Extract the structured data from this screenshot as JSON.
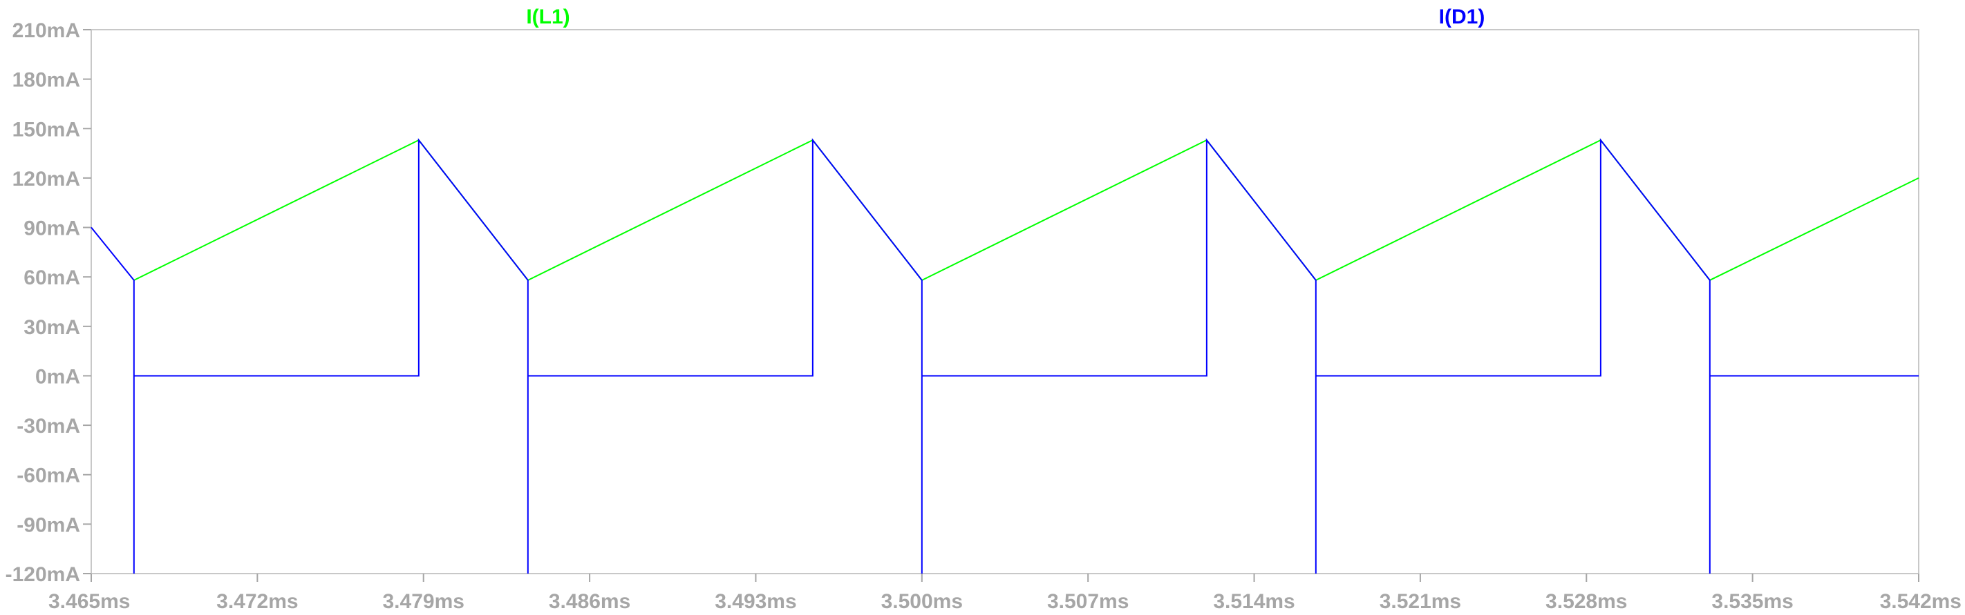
{
  "chart_data": {
    "type": "line",
    "title": "",
    "xlabel": "",
    "ylabel": "",
    "xlim": [
      3.465,
      3.542
    ],
    "ylim": [
      -120,
      210
    ],
    "x_unit": "ms",
    "y_unit": "mA",
    "grid": false,
    "legend": "top",
    "x_ticks": [
      "3.465ms",
      "3.472ms",
      "3.479ms",
      "3.486ms",
      "3.493ms",
      "3.500ms",
      "3.507ms",
      "3.514ms",
      "3.521ms",
      "3.528ms",
      "3.535ms",
      "3.542ms"
    ],
    "y_ticks": [
      "210mA",
      "180mA",
      "150mA",
      "120mA",
      "90mA",
      "60mA",
      "30mA",
      "0mA",
      "-30mA",
      "-60mA",
      "-90mA",
      "-120mA"
    ],
    "series": [
      {
        "name": "I(L1)",
        "color": "#00ff00",
        "x": [
          3.4668,
          3.4788,
          3.4834,
          3.4954,
          3.5,
          3.512,
          3.5166,
          3.5286,
          3.5332,
          3.542
        ],
        "y": [
          58,
          143,
          58,
          143,
          58,
          143,
          58,
          143,
          58,
          120
        ]
      },
      {
        "name": "I(D1)",
        "color": "#0000ff",
        "x": [
          3.465,
          3.4668,
          3.4668,
          3.4668,
          3.4788,
          3.4788,
          3.4834,
          3.4834,
          3.4834,
          3.4954,
          3.4954,
          3.5,
          3.5,
          3.5,
          3.512,
          3.512,
          3.5166,
          3.5166,
          3.5166,
          3.5286,
          3.5286,
          3.5332,
          3.5332,
          3.5332,
          3.542
        ],
        "y": [
          90,
          58,
          -120,
          0,
          0,
          143,
          58,
          -120,
          0,
          0,
          143,
          58,
          -120,
          0,
          0,
          143,
          58,
          -120,
          0,
          0,
          143,
          58,
          -120,
          0,
          0
        ]
      }
    ]
  }
}
